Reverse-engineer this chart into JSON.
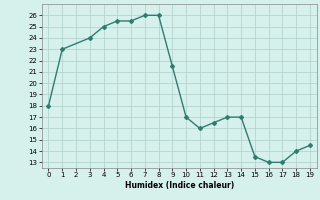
{
  "x": [
    0,
    1,
    3,
    4,
    5,
    6,
    7,
    8,
    9,
    10,
    11,
    12,
    13,
    14,
    15,
    16,
    17,
    18,
    19
  ],
  "y": [
    18,
    23,
    24,
    25,
    25.5,
    25.5,
    26,
    26,
    21.5,
    17,
    16,
    16.5,
    17,
    17,
    13.5,
    13,
    13,
    14,
    14.5
  ],
  "color": "#2e7d6e",
  "marker": "D",
  "marker_size": 2,
  "linewidth": 1.0,
  "xlabel": "Humidex (Indice chaleur)",
  "xlim": [
    -0.5,
    19.5
  ],
  "ylim": [
    12.5,
    27
  ],
  "yticks": [
    13,
    14,
    15,
    16,
    17,
    18,
    19,
    20,
    21,
    22,
    23,
    24,
    25,
    26
  ],
  "xticks": [
    0,
    1,
    2,
    3,
    4,
    5,
    6,
    7,
    8,
    9,
    10,
    11,
    12,
    13,
    14,
    15,
    16,
    17,
    18,
    19
  ],
  "bg_color": "#d6f0ec",
  "grid_color": "#b0cfc9"
}
